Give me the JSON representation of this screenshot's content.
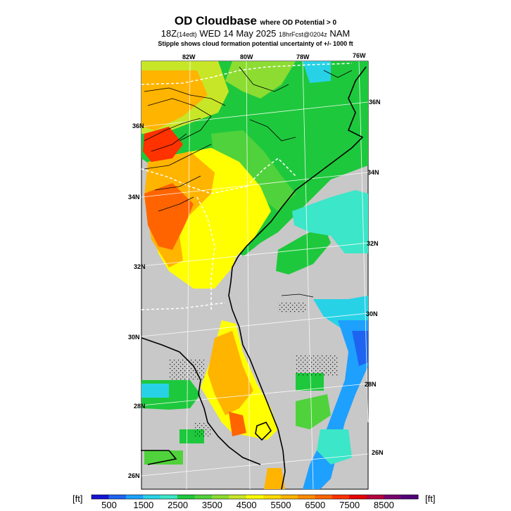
{
  "title": {
    "main": "OD Cloudbase",
    "suffix": "where OD Potential > 0"
  },
  "subtitle": {
    "valid": "18Z",
    "local": "(14edt)",
    "day": "WED 14 May 2025",
    "fcst": "18hrFcst@0204z",
    "model": "NAM"
  },
  "note": "Stipple shows cloud formation potential uncertainty of +/- 1000 ft",
  "lon_labels": [
    "82W",
    "80W",
    "78W",
    "76W"
  ],
  "lat_labels_left": [
    "36N",
    "34N",
    "32N",
    "30N",
    "28N",
    "26N"
  ],
  "lat_labels_right": [
    "36N",
    "34N",
    "32N",
    "30N",
    "28N",
    "26N"
  ],
  "colorbar": {
    "unit_left": "[ft]",
    "unit_right": "[ft]",
    "ticks": [
      "500",
      "1500",
      "2500",
      "3500",
      "4500",
      "5500",
      "6500",
      "7500",
      "8500"
    ],
    "colors": [
      "#1414d2",
      "#1e64f0",
      "#1ea0ff",
      "#28d2e6",
      "#3ce6c8",
      "#1ec83c",
      "#50d23c",
      "#8cdc32",
      "#c8e628",
      "#ffff00",
      "#ffdc00",
      "#ffb400",
      "#ff8c00",
      "#ff6400",
      "#ff3200",
      "#e60000",
      "#b4003c",
      "#78006e",
      "#500078"
    ]
  },
  "colors": {
    "no_data": "#c8c8c8",
    "coast": "#000000",
    "border": "#ffffff"
  }
}
